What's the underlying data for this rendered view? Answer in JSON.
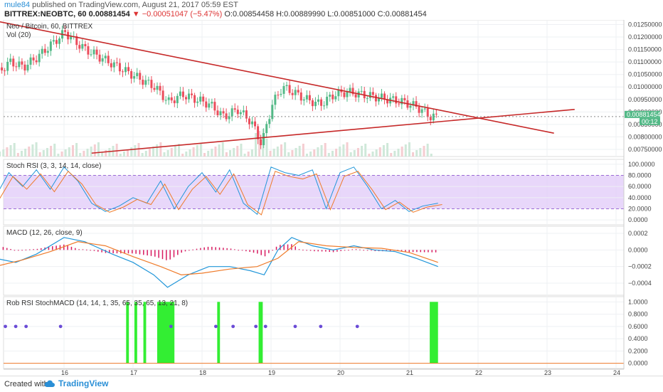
{
  "header": {
    "username": "mule84",
    "published_text": "published on TradingView.com, August 21, 2017 05:59 EST",
    "symbol": "BITTREX:NEOBTC, 60",
    "last_price": "0.00881454",
    "change_arrow": "▼",
    "change": "−0.00051047 (−5.47%)",
    "ohlc": "O:0.00854458 H:0.00889990 L:0.00851000 C:0.00881454"
  },
  "footer": {
    "created_with": "Created with",
    "brand": "TradingView"
  },
  "colors": {
    "trendline": "#c62828",
    "up": "#53b987",
    "down": "#eb4d5c",
    "rsi_band": "#e2cdf9",
    "green_signal": "#33ee33",
    "dot": "#6a4bd6",
    "macd_line": "#2196d9",
    "signal_line": "#ef7b2a",
    "hist": "#d81b60"
  },
  "chart_data": [
    {
      "type": "candlestick",
      "title": "Neo / Bitcoin, 60, BITTREX",
      "volume_label": "Vol (20)",
      "x_ticks": [
        "16",
        "17",
        "18",
        "19",
        "20",
        "21",
        "22",
        "23",
        "24"
      ],
      "y_ticks": [
        "0.01250000",
        "0.01200000",
        "0.01150000",
        "0.01100000",
        "0.01050000",
        "0.01000000",
        "0.00950000",
        "0.00900000",
        "0.00850000",
        "0.00800000",
        "0.00750000"
      ],
      "ylim": [
        0.0073,
        0.0126
      ],
      "current_price": "0.00881454",
      "countdown": "00:12",
      "close_path": [
        [
          15.0,
          0.0105
        ],
        [
          15.2,
          0.011
        ],
        [
          15.4,
          0.0108
        ],
        [
          15.6,
          0.0112
        ],
        [
          15.8,
          0.0117
        ],
        [
          16.0,
          0.0122
        ],
        [
          16.15,
          0.0118
        ],
        [
          16.3,
          0.0115
        ],
        [
          16.5,
          0.0112
        ],
        [
          16.7,
          0.0109
        ],
        [
          16.9,
          0.0106
        ],
        [
          17.1,
          0.0103
        ],
        [
          17.3,
          0.01
        ],
        [
          17.5,
          0.0094
        ],
        [
          17.7,
          0.0097
        ],
        [
          17.9,
          0.0095
        ],
        [
          18.1,
          0.0093
        ],
        [
          18.3,
          0.0088
        ],
        [
          18.5,
          0.0091
        ],
        [
          18.7,
          0.0086
        ],
        [
          18.85,
          0.0077
        ],
        [
          19.0,
          0.0093
        ],
        [
          19.15,
          0.01
        ],
        [
          19.3,
          0.0098
        ],
        [
          19.5,
          0.0095
        ],
        [
          19.7,
          0.0093
        ],
        [
          19.9,
          0.0097
        ],
        [
          20.1,
          0.0098
        ],
        [
          20.3,
          0.0097
        ],
        [
          20.5,
          0.0096
        ],
        [
          20.7,
          0.0095
        ],
        [
          20.9,
          0.0094
        ],
        [
          21.1,
          0.0092
        ],
        [
          21.3,
          0.0088
        ],
        [
          21.42,
          0.00881
        ]
      ],
      "trendlines": [
        {
          "from": [
            15.0,
            0.01265
          ],
          "to": [
            23.1,
            0.00815
          ]
        },
        {
          "from": [
            16.4,
            0.00735
          ],
          "to": [
            23.4,
            0.0091
          ]
        }
      ]
    },
    {
      "type": "line",
      "title": "Stoch RSI (3, 3, 14, 14, close)",
      "y_ticks": [
        "100.0000",
        "80.0000",
        "60.0000",
        "40.0000",
        "20.0000",
        "0.0000"
      ],
      "ylim": [
        -5,
        105
      ],
      "band": [
        20,
        80
      ],
      "series": [
        {
          "values": [
            [
              15.0,
              40
            ],
            [
              15.2,
              85
            ],
            [
              15.4,
              60
            ],
            [
              15.6,
              90
            ],
            [
              15.8,
              55
            ],
            [
              16.0,
              95
            ],
            [
              16.2,
              70
            ],
            [
              16.4,
              30
            ],
            [
              16.6,
              15
            ],
            [
              16.8,
              25
            ],
            [
              17.0,
              40
            ],
            [
              17.2,
              30
            ],
            [
              17.4,
              70
            ],
            [
              17.6,
              20
            ],
            [
              17.8,
              60
            ],
            [
              18.0,
              85
            ],
            [
              18.2,
              50
            ],
            [
              18.4,
              90
            ],
            [
              18.6,
              30
            ],
            [
              18.8,
              10
            ],
            [
              19.0,
              95
            ],
            [
              19.2,
              85
            ],
            [
              19.4,
              80
            ],
            [
              19.6,
              90
            ],
            [
              19.8,
              20
            ],
            [
              20.0,
              85
            ],
            [
              20.2,
              95
            ],
            [
              20.4,
              60
            ],
            [
              20.6,
              20
            ],
            [
              20.8,
              35
            ],
            [
              21.0,
              15
            ],
            [
              21.2,
              25
            ],
            [
              21.42,
              30
            ]
          ]
        }
      ]
    },
    {
      "type": "line",
      "title": "MACD (12, 26, close, 9)",
      "y_ticks": [
        "0.0002",
        "0.0000",
        "−0.0002",
        "−0.0004"
      ],
      "ylim": [
        -0.00052,
        0.00026
      ],
      "series": [
        {
          "values": [
            [
              15.0,
              -0.0001
            ],
            [
              15.3,
              -0.00015
            ],
            [
              15.6,
              -5e-05
            ],
            [
              16.0,
              0.00015
            ],
            [
              16.3,
              0.0001
            ],
            [
              16.7,
              -5e-05
            ],
            [
              17.0,
              -0.00015
            ],
            [
              17.3,
              -0.0003
            ],
            [
              17.5,
              -0.00045
            ],
            [
              17.8,
              -0.0003
            ],
            [
              18.1,
              -0.0002
            ],
            [
              18.4,
              -0.0002
            ],
            [
              18.7,
              -0.00025
            ],
            [
              18.9,
              -0.0003
            ],
            [
              19.1,
              0.0
            ],
            [
              19.3,
              0.00015
            ],
            [
              19.6,
              5e-05
            ],
            [
              19.9,
              0.0
            ],
            [
              20.2,
              5e-05
            ],
            [
              20.5,
              0.0
            ],
            [
              20.8,
              -2e-05
            ],
            [
              21.1,
              -0.0001
            ],
            [
              21.42,
              -0.0002
            ]
          ]
        },
        {
          "values": [
            [
              15.0,
              -0.0002
            ],
            [
              15.4,
              -0.00012
            ],
            [
              15.8,
              -2e-05
            ],
            [
              16.2,
              0.0001
            ],
            [
              16.6,
              5e-05
            ],
            [
              17.0,
              -8e-05
            ],
            [
              17.4,
              -0.0002
            ],
            [
              17.7,
              -0.0003
            ],
            [
              18.0,
              -0.00028
            ],
            [
              18.4,
              -0.00023
            ],
            [
              18.8,
              -0.0002
            ],
            [
              19.1,
              -0.0001
            ],
            [
              19.4,
              0.0001
            ],
            [
              19.8,
              5e-05
            ],
            [
              20.2,
              3e-05
            ],
            [
              20.6,
              2e-05
            ],
            [
              21.0,
              -3e-05
            ],
            [
              21.42,
              -0.00015
            ]
          ]
        }
      ]
    },
    {
      "type": "bar",
      "title": "Rob RSI StochMACD (14, 14, 1, 35, 65, 35, 65, 13, 21, 8)",
      "y_ticks": [
        "1.0000",
        "0.8000",
        "0.6000",
        "0.4000",
        "0.2000",
        "0.0000"
      ],
      "ylim": [
        -0.05,
        1.05
      ],
      "signal_spans": [
        [
          15.02,
          15.06
        ],
        [
          16.9,
          16.94
        ],
        [
          17.02,
          17.06
        ],
        [
          17.15,
          17.19
        ],
        [
          17.35,
          17.6
        ],
        [
          18.22,
          18.26
        ],
        [
          18.82,
          18.88
        ],
        [
          21.3,
          21.42
        ]
      ],
      "dots": [
        15.15,
        15.3,
        15.45,
        15.95,
        17.55,
        18.2,
        18.45,
        18.78,
        18.92,
        19.35,
        19.72,
        20.25
      ]
    }
  ]
}
